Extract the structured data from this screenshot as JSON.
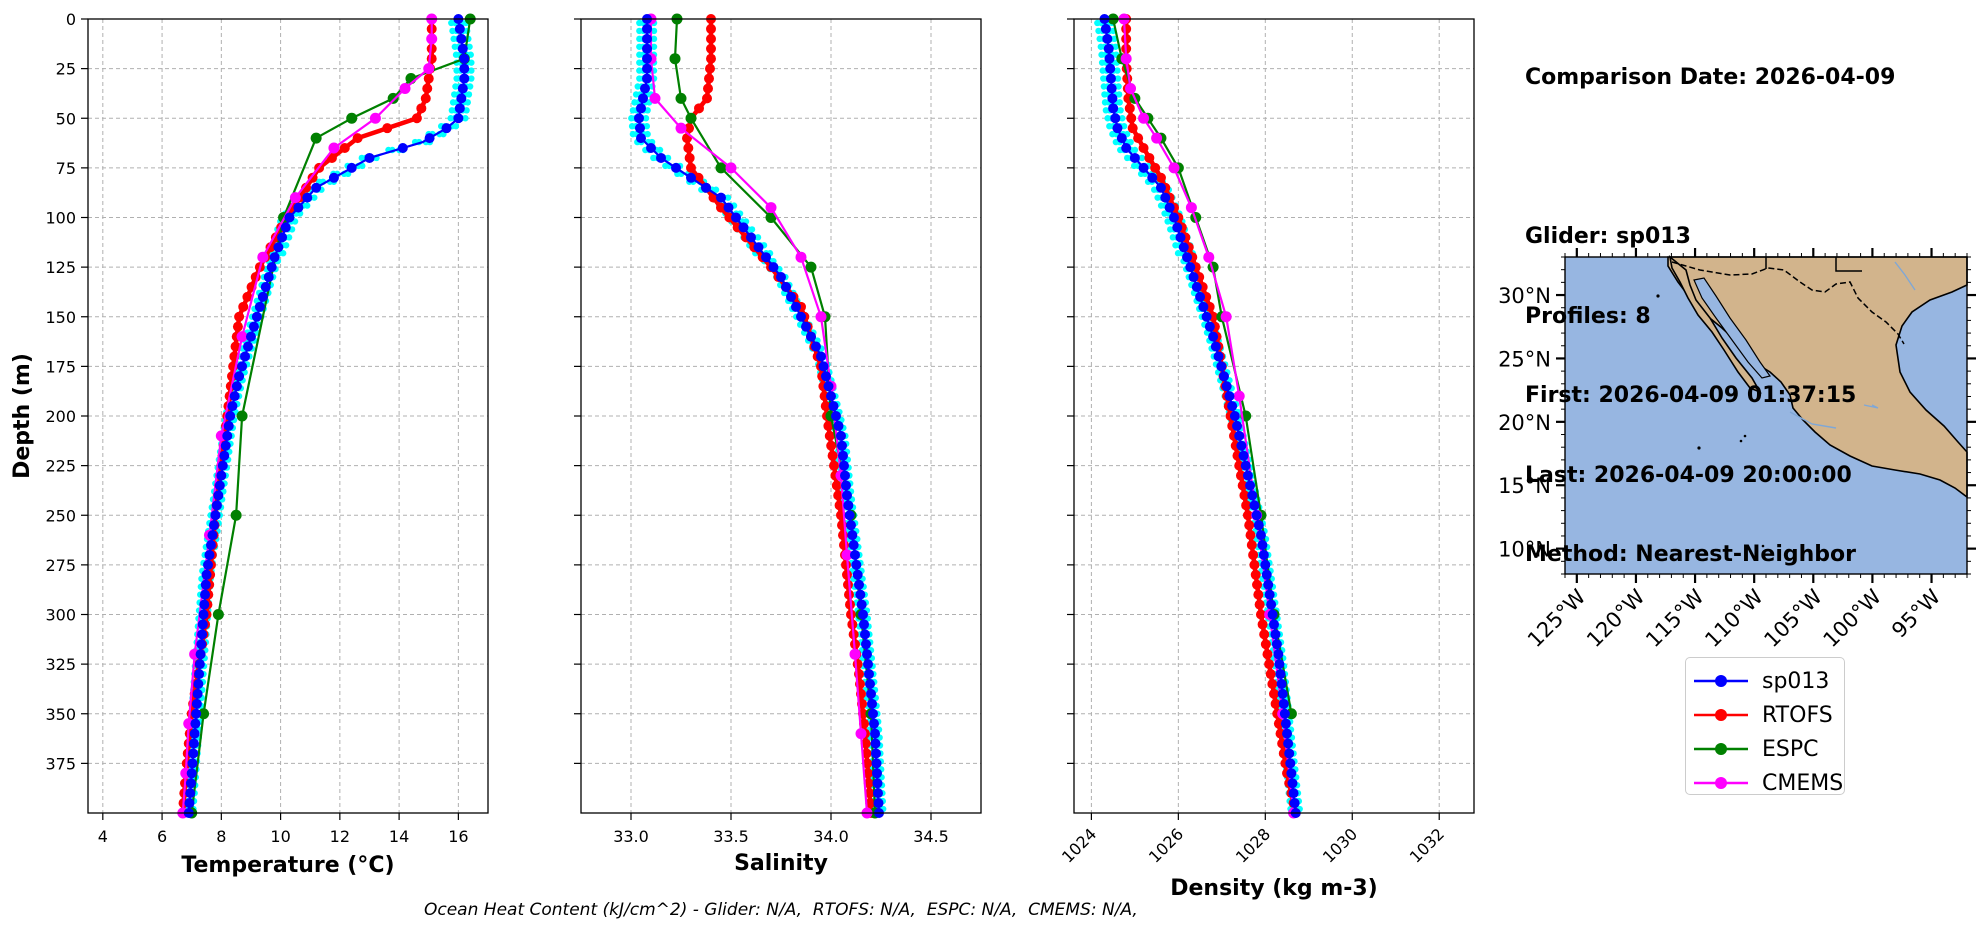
{
  "info": {
    "comparison": "Comparison Date: 2026-04-09",
    "glider": "Glider: sp013",
    "profiles": "Profiles: 8",
    "first": "First: 2026-04-09 01:37:15",
    "last": "Last: 2026-04-09 20:00:00",
    "method": "Method: Nearest-Neighbor"
  },
  "footer": "Ocean Heat Content (kJ/cm^2) - Glider: N/A,  RTOFS: N/A,  ESPC: N/A,  CMEMS: N/A,",
  "colors": {
    "glider": "#0000ff",
    "rtofs": "#ff0000",
    "espc": "#008000",
    "cmems": "#ff00ff",
    "glider_profiles": "#00ffff",
    "ocean": "#97b6e1",
    "land": "#d2b48c"
  },
  "legend": [
    {
      "name": "sp013",
      "color": "#0000ff"
    },
    {
      "name": "RTOFS",
      "color": "#ff0000"
    },
    {
      "name": "ESPC",
      "color": "#008000"
    },
    {
      "name": "CMEMS",
      "color": "#ff00ff"
    }
  ],
  "chart_data": [
    {
      "type": "line",
      "xlabel": "Temperature (°C)",
      "ylabel": "Depth (m)",
      "xlim": [
        3.5,
        17
      ],
      "ylim": [
        400,
        0
      ],
      "xticks": [
        "4",
        "6",
        "8",
        "10",
        "12",
        "14",
        "16"
      ],
      "yticks": [
        "0",
        "25",
        "50",
        "75",
        "100",
        "125",
        "150",
        "175",
        "200",
        "225",
        "250",
        "275",
        "300",
        "325",
        "350",
        "375"
      ],
      "grid": true,
      "series": [
        {
          "name": "sp013",
          "color": "#0000ff",
          "x": [
            16.0,
            16.1,
            16.2,
            16.2,
            16.1,
            16.0,
            15.6,
            14.8,
            13.0,
            11.2,
            10.3,
            9.8,
            9.4,
            9.0,
            8.6,
            8.3,
            8.1,
            7.9,
            7.7,
            7.5,
            7.4,
            7.3,
            7.2,
            7.1,
            7.0,
            6.9
          ],
          "y": [
            0,
            10,
            20,
            30,
            40,
            50,
            55,
            62,
            70,
            85,
            100,
            120,
            140,
            160,
            180,
            200,
            220,
            240,
            260,
            280,
            300,
            320,
            340,
            360,
            380,
            400
          ]
        },
        {
          "name": "RTOFS",
          "color": "#ff0000",
          "x": [
            15.1,
            15.1,
            15.1,
            15.0,
            14.9,
            14.6,
            12.6,
            11.3,
            10.2,
            9.3,
            8.6,
            8.2,
            7.8,
            7.5,
            7.2,
            7.0,
            6.8,
            6.7
          ],
          "y": [
            0,
            10,
            20,
            30,
            40,
            50,
            60,
            75,
            100,
            125,
            150,
            200,
            250,
            300,
            330,
            350,
            380,
            400
          ]
        },
        {
          "name": "ESPC",
          "color": "#008000",
          "x": [
            16.4,
            16.2,
            14.4,
            13.8,
            12.4,
            11.2,
            10.1,
            8.7,
            8.5,
            7.9,
            7.4,
            7.0
          ],
          "y": [
            0,
            20,
            30,
            40,
            50,
            60,
            100,
            200,
            250,
            300,
            350,
            400
          ]
        },
        {
          "name": "CMEMS",
          "color": "#ff00ff",
          "x": [
            15.1,
            15.1,
            15.0,
            14.2,
            13.2,
            11.8,
            10.5,
            9.4,
            8.7,
            8.0,
            7.6,
            7.1,
            6.9,
            6.8,
            6.7
          ],
          "y": [
            0,
            10,
            25,
            35,
            50,
            65,
            90,
            120,
            160,
            210,
            260,
            320,
            355,
            380,
            400
          ]
        }
      ]
    },
    {
      "type": "line",
      "xlabel": "Salinity",
      "ylabel": "",
      "xlim": [
        32.75,
        34.75
      ],
      "ylim": [
        400,
        0
      ],
      "xticks": [
        "33.0",
        "33.5",
        "34.0",
        "34.5"
      ],
      "grid": true,
      "series": [
        {
          "name": "sp013",
          "color": "#0000ff",
          "x": [
            33.08,
            33.08,
            33.08,
            33.08,
            33.06,
            33.04,
            33.05,
            33.15,
            33.3,
            33.45,
            33.6,
            33.75,
            33.85,
            33.95,
            34.0,
            34.05,
            34.08,
            34.12,
            34.16,
            34.19,
            34.22,
            34.24
          ],
          "y": [
            0,
            10,
            20,
            30,
            40,
            50,
            60,
            70,
            80,
            90,
            110,
            130,
            150,
            170,
            190,
            210,
            240,
            270,
            300,
            330,
            360,
            400
          ]
        },
        {
          "name": "RTOFS",
          "color": "#ff0000",
          "x": [
            33.4,
            33.4,
            33.38,
            33.3,
            33.28,
            33.3,
            33.45,
            33.7,
            33.85,
            33.95,
            33.98,
            34.05,
            34.1,
            34.14,
            34.17,
            34.2
          ],
          "y": [
            0,
            20,
            40,
            50,
            60,
            75,
            95,
            125,
            145,
            175,
            200,
            250,
            300,
            330,
            360,
            400
          ]
        },
        {
          "name": "ESPC",
          "color": "#008000",
          "x": [
            33.23,
            33.22,
            33.25,
            33.3,
            33.45,
            33.7,
            33.9,
            33.97,
            34.0,
            34.1,
            34.15,
            34.2,
            34.22
          ],
          "y": [
            0,
            20,
            40,
            50,
            75,
            100,
            125,
            150,
            200,
            250,
            300,
            350,
            400
          ]
        },
        {
          "name": "CMEMS",
          "color": "#ff00ff",
          "x": [
            33.1,
            33.1,
            33.12,
            33.25,
            33.5,
            33.7,
            33.85,
            33.95,
            34.0,
            34.05,
            34.08,
            34.12,
            34.15,
            34.18
          ],
          "y": [
            0,
            20,
            40,
            55,
            75,
            95,
            120,
            150,
            185,
            230,
            270,
            320,
            360,
            400
          ]
        }
      ]
    },
    {
      "type": "line",
      "xlabel": "Density (kg m-3)",
      "ylabel": "",
      "xlim": [
        1023.6,
        1032.8
      ],
      "ylim": [
        400,
        0
      ],
      "xticks": [
        "1024",
        "1026",
        "1028",
        "1030",
        "1032"
      ],
      "grid": true,
      "series": [
        {
          "name": "sp013",
          "color": "#0000ff",
          "x": [
            1024.3,
            1024.4,
            1024.45,
            1024.5,
            1024.6,
            1024.8,
            1025.2,
            1025.6,
            1025.9,
            1026.2,
            1026.5,
            1026.8,
            1027.05,
            1027.3,
            1027.5,
            1027.7,
            1027.9,
            1028.1,
            1028.3,
            1028.5,
            1028.7
          ],
          "y": [
            0,
            15,
            30,
            45,
            55,
            65,
            75,
            85,
            100,
            120,
            140,
            160,
            180,
            200,
            220,
            240,
            260,
            290,
            320,
            360,
            400
          ]
        },
        {
          "name": "RTOFS",
          "color": "#ff0000",
          "x": [
            1024.8,
            1024.8,
            1024.85,
            1024.95,
            1025.2,
            1025.6,
            1026.0,
            1026.4,
            1026.8,
            1027.2,
            1027.6,
            1027.9,
            1028.2,
            1028.5,
            1028.7
          ],
          "y": [
            0,
            20,
            40,
            55,
            65,
            80,
            100,
            125,
            150,
            200,
            250,
            300,
            340,
            380,
            400
          ]
        },
        {
          "name": "ESPC",
          "color": "#008000",
          "x": [
            1024.5,
            1024.7,
            1025.0,
            1025.3,
            1025.6,
            1026.0,
            1026.4,
            1026.8,
            1027.0,
            1027.55,
            1027.9,
            1028.2,
            1028.6
          ],
          "y": [
            0,
            20,
            40,
            50,
            60,
            75,
            100,
            125,
            150,
            200,
            250,
            300,
            350
          ]
        },
        {
          "name": "CMEMS",
          "color": "#ff00ff",
          "x": [
            1024.75,
            1024.8,
            1024.9,
            1025.2,
            1025.5,
            1025.9,
            1026.3,
            1026.7,
            1027.1,
            1027.4,
            1027.8,
            1028.1,
            1028.4,
            1028.65
          ],
          "y": [
            0,
            20,
            35,
            50,
            60,
            75,
            95,
            120,
            150,
            190,
            250,
            300,
            350,
            400
          ]
        }
      ]
    },
    {
      "type": "map",
      "lon_ticks": [
        "125°W",
        "120°W",
        "115°W",
        "110°W",
        "105°W",
        "100°W",
        "95°W"
      ],
      "lat_ticks": [
        "10°N",
        "15°N",
        "20°N",
        "25°N",
        "30°N"
      ],
      "lon_range": [
        -126,
        -92
      ],
      "lat_range": [
        8,
        33
      ]
    }
  ]
}
